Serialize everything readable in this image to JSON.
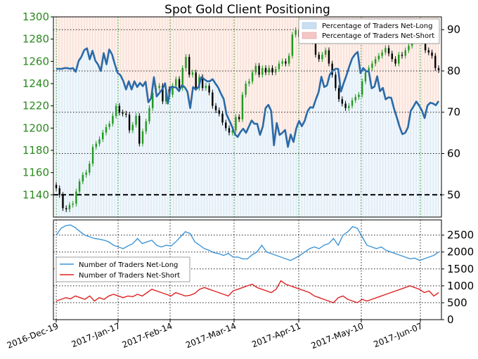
{
  "chart_data": [
    {
      "type": "line",
      "title": "Spot Gold Client Positioning",
      "y_left": {
        "lim": [
          1120,
          1300
        ],
        "ticks": [
          1140,
          1160,
          1180,
          1200,
          1220,
          1240,
          1260,
          1280,
          1300
        ]
      },
      "y_right": {
        "lim": [
          44.6,
          93.1
        ],
        "ticks": [
          50,
          60,
          70,
          80,
          90
        ],
        "highlight": 50
      },
      "legend": {
        "position": "top-right",
        "entries": [
          {
            "label": "Percentage of Traders Net-Long",
            "color": "#c9dff2"
          },
          {
            "label": "Percentage of Traders Net-Short",
            "color": "#f4c6c6"
          }
        ]
      },
      "net_long_pct": [
        80.5,
        80.5,
        80.5,
        80.7,
        80.7,
        80.5,
        80.7,
        79.8,
        82.4,
        83.4,
        85,
        85.5,
        82.8,
        84.9,
        82.5,
        81.5,
        80,
        84.3,
        81.6,
        85.2,
        84,
        81.6,
        79.5,
        79,
        77.6,
        75.5,
        77.5,
        75.5,
        77.5,
        76.1,
        77.1,
        76.3,
        77.4,
        72.4,
        73.4,
        78.5,
        73.8,
        74.7,
        75.6,
        77,
        72.1,
        76.1,
        76.1,
        76,
        75.1,
        76.5,
        76.1,
        75,
        71,
        76.1,
        75.5,
        76.1,
        78.5,
        78,
        77.5,
        77.5,
        78,
        77,
        76,
        74.5,
        73.2,
        69.5,
        68,
        66.5,
        64.7,
        64,
        65.2,
        66,
        65,
        66.5,
        68,
        67.2,
        67.2,
        64.5,
        66.5,
        71,
        71.8,
        70.3,
        62,
        67.4,
        64.5,
        65,
        65.7,
        61.6,
        64.6,
        62.8,
        66.1,
        67.9,
        66.6,
        67.9,
        70.2,
        71.2,
        71.1,
        73.1,
        74.9,
        78.6,
        76.1,
        76.5,
        79.1,
        80,
        80.5,
        80.5,
        75,
        77.1,
        79,
        81.1,
        83,
        84,
        84.6,
        79.5,
        80.7,
        79.9,
        79.9,
        75.8,
        76.2,
        78.7,
        75.1,
        75.9,
        73.1,
        73.6,
        73.5,
        70.9,
        68.8,
        66.5,
        64.7,
        65,
        66.3,
        70.3,
        71.4,
        72.6,
        71.6,
        70.4,
        68.6,
        71.6,
        72.3,
        72.1,
        71.7,
        72.7
      ],
      "candles_close": [
        1146,
        1140,
        1128,
        1127,
        1131,
        1132,
        1143,
        1152,
        1158,
        1160,
        1168,
        1183,
        1186,
        1190,
        1196,
        1201,
        1204,
        1211,
        1220,
        1214,
        1213,
        1212,
        1198,
        1203,
        1211,
        1186,
        1197,
        1206,
        1218,
        1232,
        1236,
        1238,
        1224,
        1235,
        1230,
        1238,
        1244,
        1236,
        1254,
        1264,
        1248,
        1250,
        1236,
        1246,
        1236,
        1238,
        1232,
        1220,
        1216,
        1213,
        1205,
        1200,
        1196,
        1198,
        1210,
        1208,
        1230,
        1240,
        1242,
        1250,
        1256,
        1248,
        1254,
        1250,
        1254,
        1250,
        1253,
        1258,
        1260,
        1258,
        1265,
        1284,
        1288,
        1282,
        1288,
        1292,
        1282,
        1278,
        1266,
        1262,
        1266,
        1270,
        1258,
        1248,
        1236,
        1226,
        1222,
        1218,
        1220,
        1225,
        1228,
        1230,
        1242,
        1250,
        1254,
        1258,
        1262,
        1265,
        1268,
        1272,
        1267,
        1262,
        1258,
        1266,
        1265,
        1270,
        1274,
        1279,
        1290,
        1282,
        1278,
        1270,
        1268,
        1265,
        1254,
        1252
      ],
      "net_long_traders": [
        2500,
        2700,
        2780,
        2800,
        2720,
        2600,
        2500,
        2450,
        2400,
        2380,
        2350,
        2300,
        2200,
        2150,
        2100,
        2180,
        2250,
        2400,
        2250,
        2300,
        2350,
        2200,
        2150,
        2200,
        2180,
        2300,
        2450,
        2600,
        2550,
        2300,
        2200,
        2100,
        2050,
        1980,
        1950,
        1900,
        1960,
        1850,
        1850,
        1800,
        1800,
        1920,
        2000,
        2200,
        2000,
        1950,
        1900,
        1850,
        1800,
        1750,
        1820,
        1900,
        2000,
        2100,
        2150,
        2100,
        2200,
        2250,
        2400,
        2200,
        2500,
        2600,
        2750,
        2700,
        2450,
        2200,
        2150,
        2100,
        2150,
        2050,
        2000,
        1950,
        1900,
        1850,
        1800,
        1820,
        1750,
        1800,
        1850,
        1900,
        2000
      ],
      "net_short_traders": [
        550,
        600,
        650,
        620,
        700,
        650,
        600,
        700,
        550,
        650,
        600,
        700,
        750,
        700,
        650,
        700,
        680,
        750,
        700,
        800,
        900,
        850,
        800,
        750,
        700,
        800,
        750,
        700,
        720,
        780,
        900,
        950,
        900,
        850,
        800,
        750,
        700,
        850,
        900,
        950,
        1000,
        1050,
        950,
        900,
        850,
        800,
        900,
        1150,
        1050,
        1000,
        950,
        900,
        850,
        800,
        700,
        650,
        600,
        550,
        500,
        650,
        700,
        600,
        550,
        500,
        600,
        550,
        600,
        650,
        700,
        750,
        800,
        850,
        900,
        950,
        1000,
        950,
        900,
        800,
        850,
        700,
        800
      ],
      "lower_axis": {
        "y_ticks": [
          0,
          500,
          1000,
          1500,
          2000,
          2500
        ],
        "ylim": [
          0,
          2950
        ]
      },
      "lower_legend": {
        "position": "middle-left",
        "entries": [
          {
            "label": "Number of Traders Net-Long",
            "color": "#3d95d8"
          },
          {
            "label": "Number of Traders Net-Short",
            "color": "#dd2222"
          }
        ]
      },
      "x_ticks": [
        "2016-Dec-19",
        "2017-Jan-17",
        "2017-Feb-14",
        "2017-Mar-14",
        "2017-Apr-11",
        "2017-May-10",
        "2017-Jun-07"
      ]
    }
  ]
}
